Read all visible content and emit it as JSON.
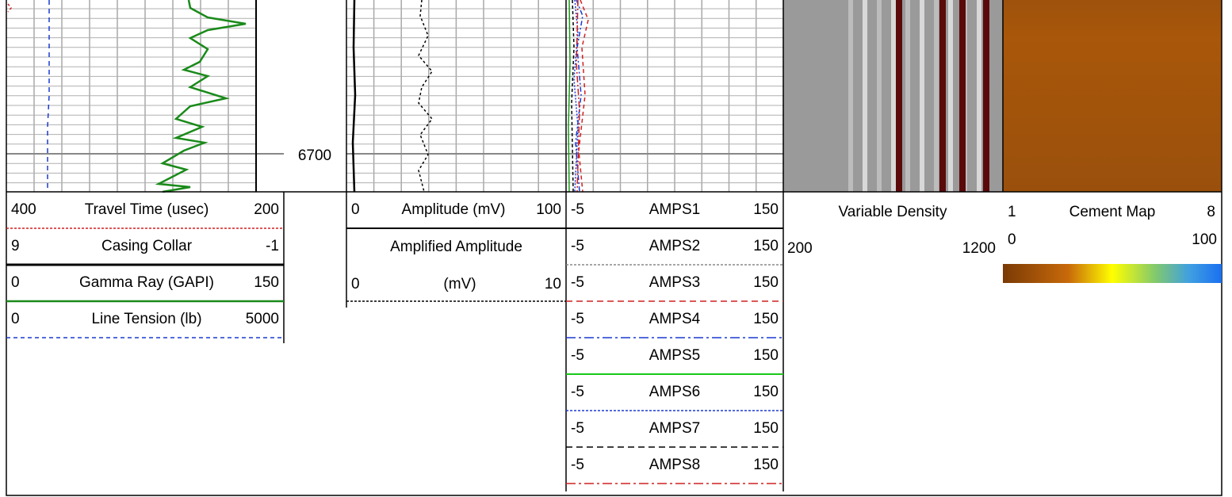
{
  "depth_label": "6700",
  "track1": {
    "curves": [
      {
        "left": "400",
        "name": "Travel Time (usec)",
        "right": "200"
      },
      {
        "left": "9",
        "name": "Casing Collar",
        "right": "-1"
      },
      {
        "left": "0",
        "name": "Gamma Ray (GAPI)",
        "right": "150"
      },
      {
        "left": "0",
        "name": "Line Tension (lb)",
        "right": "5000"
      }
    ]
  },
  "track2": {
    "curves": [
      {
        "left": "0",
        "name": "Amplitude (mV)",
        "right": "100"
      },
      {
        "title": "Amplified Amplitude",
        "left": "0",
        "name": "(mV)",
        "right": "10"
      }
    ]
  },
  "track3": {
    "curves": [
      {
        "left": "-5",
        "name": "AMPS1",
        "right": "150"
      },
      {
        "left": "-5",
        "name": "AMPS2",
        "right": "150"
      },
      {
        "left": "-5",
        "name": "AMPS3",
        "right": "150"
      },
      {
        "left": "-5",
        "name": "AMPS4",
        "right": "150"
      },
      {
        "left": "-5",
        "name": "AMPS5",
        "right": "150"
      },
      {
        "left": "-5",
        "name": "AMPS6",
        "right": "150"
      },
      {
        "left": "-5",
        "name": "AMPS7",
        "right": "150"
      },
      {
        "left": "-5",
        "name": "AMPS8",
        "right": "150"
      }
    ]
  },
  "vdl": {
    "title": "Variable Density",
    "left": "200",
    "right": "1200"
  },
  "cement_map": {
    "left": "1",
    "title": "Cement Map",
    "right": "8",
    "scale_left": "0",
    "scale_right": "100"
  }
}
